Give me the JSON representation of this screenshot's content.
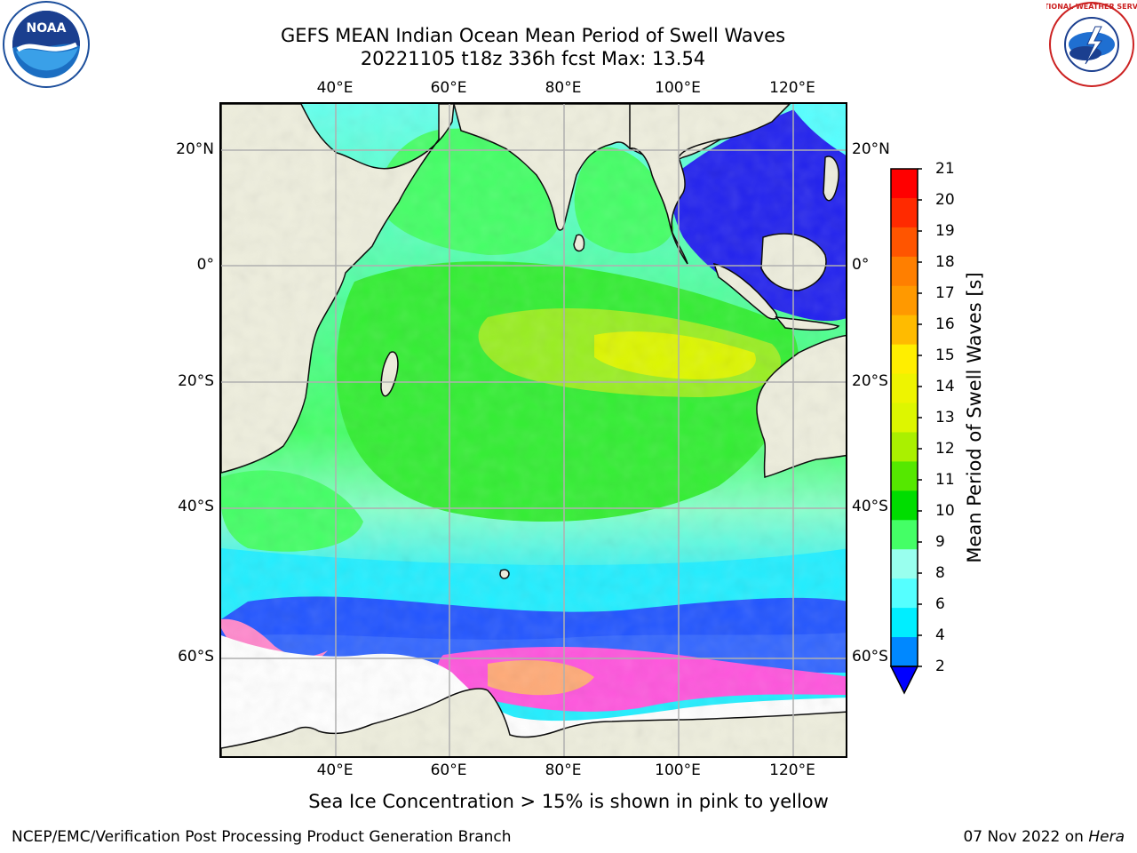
{
  "title": {
    "line1": "GEFS MEAN Indian Ocean Mean Period of Swell Waves",
    "line2": "20221105 t18z 336h fcst   Max: 13.54"
  },
  "map": {
    "lon_labels": [
      "40°E",
      "60°E",
      "80°E",
      "100°E",
      "120°E"
    ],
    "lat_labels_left": [
      "20°N",
      "0°",
      "20°S",
      "40°S",
      "60°S"
    ],
    "lat_labels_right": [
      "20°N",
      "0°",
      "20°S",
      "40°S",
      "60°S"
    ],
    "lon_range": [
      20,
      130
    ],
    "lat_range": [
      -85,
      30
    ],
    "ocean_fill_color": "#5dfbfb",
    "land_color": "#eeeedd",
    "sea_ice_colors": [
      "#ff55dd",
      "#ffaa77",
      "#ffee88"
    ]
  },
  "colorbar": {
    "title": "Mean Period of Swell Waves [s]",
    "ticks": [
      "21",
      "20",
      "19",
      "18",
      "17",
      "16",
      "15",
      "14",
      "13",
      "12",
      "11",
      "10",
      "9",
      "8",
      "6",
      "4",
      "2"
    ],
    "colors": [
      "#ff0000",
      "#ff2a00",
      "#ff5500",
      "#ff7f00",
      "#ff9900",
      "#ffbb00",
      "#ffee00",
      "#eef400",
      "#ddf600",
      "#aaf000",
      "#55e800",
      "#00dd00",
      "#44ff66",
      "#99ffee",
      "#55ffff",
      "#00eeff",
      "#0088ff",
      "#0000ff"
    ],
    "extend_color": "#0000ff"
  },
  "note": "Sea Ice Concentration > 15% is shown in pink to yellow",
  "footer": {
    "left": "NCEP/EMC/Verification Post Processing Product Generation Branch",
    "right_date": "07 Nov 2022 on ",
    "right_host": "Hera"
  },
  "logos": {
    "left": "noaa-logo",
    "left_text": "NOAA",
    "right": "nws-logo",
    "right_text": "NATIONAL WEATHER SERVICE"
  }
}
